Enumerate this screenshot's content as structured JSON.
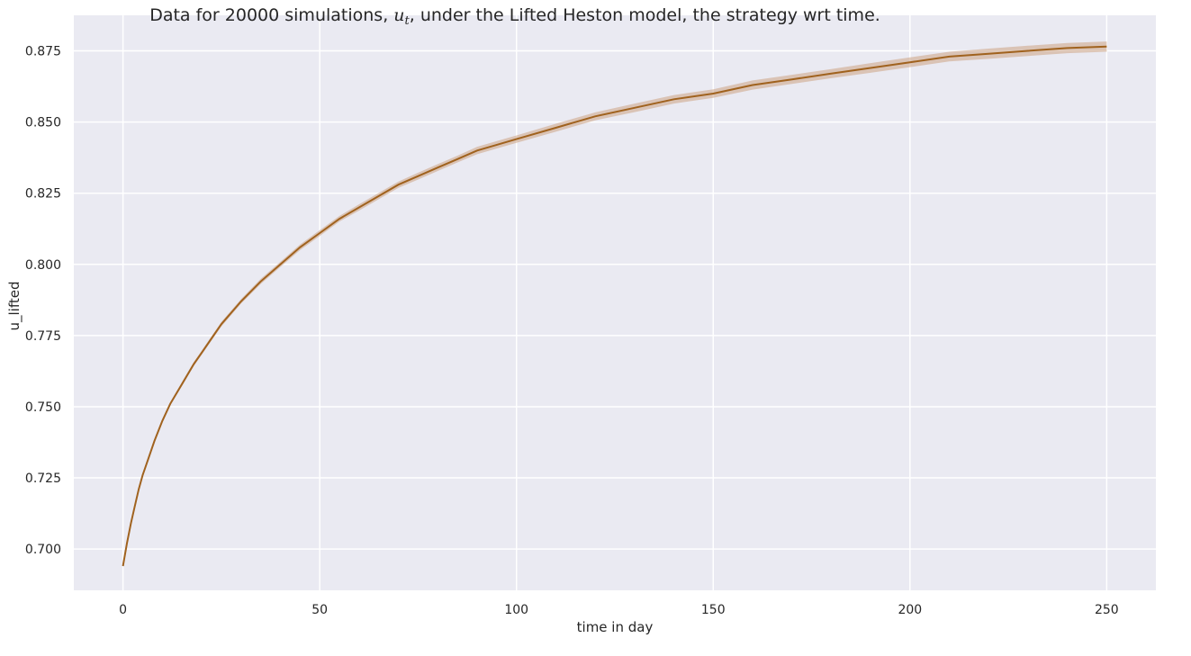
{
  "chart_data": {
    "type": "line",
    "title_parts": [
      "Data for 20000 simulations, ",
      "u",
      "t",
      ", under the Lifted Heston model, the strategy wrt time."
    ],
    "xlabel": "time in day",
    "ylabel": "u_lifted",
    "xlim": [
      -12.5,
      262.5
    ],
    "ylim": [
      0.6855,
      0.8875
    ],
    "xticks": [
      0,
      50,
      100,
      150,
      200,
      250
    ],
    "xtick_labels": [
      "0",
      "50",
      "100",
      "150",
      "200",
      "250"
    ],
    "yticks": [
      0.7,
      0.725,
      0.75,
      0.775,
      0.8,
      0.825,
      0.85,
      0.875
    ],
    "ytick_labels": [
      "0.700",
      "0.725",
      "0.750",
      "0.775",
      "0.800",
      "0.825",
      "0.850",
      "0.875"
    ],
    "grid": true,
    "background": "#eaeaf2",
    "grid_color": "#ffffff",
    "line_color": "#a0621e",
    "band_color": "#cfa98c",
    "series": [
      {
        "x": [
          0,
          1,
          2,
          3,
          4,
          5,
          6,
          8,
          10,
          12,
          15,
          18,
          20,
          25,
          30,
          35,
          40,
          45,
          50,
          55,
          60,
          65,
          70,
          75,
          80,
          85,
          90,
          95,
          100,
          110,
          120,
          130,
          140,
          150,
          160,
          170,
          180,
          190,
          200,
          210,
          220,
          230,
          240,
          250
        ],
        "y": [
          0.694,
          0.702,
          0.709,
          0.715,
          0.721,
          0.726,
          0.73,
          0.738,
          0.745,
          0.751,
          0.758,
          0.765,
          0.769,
          0.779,
          0.787,
          0.794,
          0.8,
          0.806,
          0.811,
          0.816,
          0.82,
          0.824,
          0.828,
          0.831,
          0.834,
          0.837,
          0.84,
          0.842,
          0.844,
          0.848,
          0.852,
          0.855,
          0.858,
          0.86,
          0.863,
          0.865,
          0.867,
          0.869,
          0.871,
          0.873,
          0.874,
          0.875,
          0.876,
          0.8765
        ],
        "ci_halfwidth": [
          0.0003,
          0.0003,
          0.0003,
          0.0004,
          0.0004,
          0.0004,
          0.0005,
          0.0005,
          0.0006,
          0.0006,
          0.0007,
          0.0007,
          0.0007,
          0.0008,
          0.0008,
          0.0009,
          0.0009,
          0.001,
          0.001,
          0.001,
          0.0011,
          0.0011,
          0.0011,
          0.0012,
          0.0012,
          0.0012,
          0.0013,
          0.0013,
          0.0013,
          0.0014,
          0.0014,
          0.0015,
          0.0015,
          0.0015,
          0.0016,
          0.0016,
          0.0016,
          0.0017,
          0.0017,
          0.0017,
          0.0018,
          0.0018,
          0.0018,
          0.0018
        ]
      }
    ]
  }
}
